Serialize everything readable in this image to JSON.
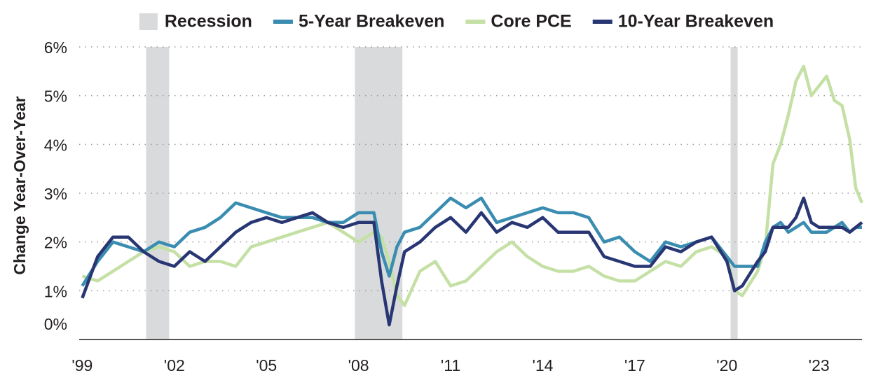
{
  "chart_data": {
    "type": "line",
    "y_axis_label": "Change Year-Over-Year",
    "recession": {
      "name": "Recession",
      "color": "#d9dadc",
      "ranges": [
        [
          2001.08,
          2001.83
        ],
        [
          2007.88,
          2009.43
        ],
        [
          2020.12,
          2020.35
        ]
      ]
    },
    "x": [
      1999.0,
      1999.5,
      2000.0,
      2000.5,
      2001.0,
      2001.5,
      2002.0,
      2002.5,
      2003.0,
      2003.5,
      2004.0,
      2004.5,
      2005.0,
      2005.5,
      2006.0,
      2006.5,
      2007.0,
      2007.5,
      2008.0,
      2008.5,
      2008.75,
      2009.0,
      2009.25,
      2009.5,
      2010.0,
      2010.5,
      2011.0,
      2011.5,
      2012.0,
      2012.5,
      2013.0,
      2013.5,
      2014.0,
      2014.5,
      2015.0,
      2015.5,
      2016.0,
      2016.5,
      2017.0,
      2017.5,
      2018.0,
      2018.5,
      2019.0,
      2019.5,
      2020.0,
      2020.25,
      2020.5,
      2021.0,
      2021.25,
      2021.5,
      2021.75,
      2022.0,
      2022.25,
      2022.5,
      2022.75,
      2023.0,
      2023.25,
      2023.5,
      2023.75,
      2024.0,
      2024.2,
      2024.4
    ],
    "series": [
      {
        "name": "Core PCE",
        "color": "#c5e0a5",
        "values": [
          1.3,
          1.2,
          1.4,
          1.6,
          1.8,
          1.9,
          1.8,
          1.5,
          1.6,
          1.6,
          1.5,
          1.9,
          2.0,
          2.1,
          2.2,
          2.3,
          2.4,
          2.2,
          2.0,
          2.2,
          2.1,
          1.6,
          0.9,
          0.7,
          1.4,
          1.6,
          1.1,
          1.2,
          1.5,
          1.8,
          2.0,
          1.7,
          1.5,
          1.4,
          1.4,
          1.5,
          1.3,
          1.2,
          1.2,
          1.4,
          1.6,
          1.5,
          1.8,
          1.9,
          1.7,
          1.0,
          0.9,
          1.4,
          1.9,
          3.6,
          4.0,
          4.6,
          5.3,
          5.6,
          5.0,
          5.2,
          5.4,
          4.9,
          4.8,
          4.1,
          3.1,
          2.8
        ]
      },
      {
        "name": "5-Year Breakeven",
        "color": "#3a8db0",
        "values": [
          1.1,
          1.6,
          2.0,
          1.9,
          1.8,
          2.0,
          1.9,
          2.2,
          2.3,
          2.5,
          2.8,
          2.7,
          2.6,
          2.5,
          2.5,
          2.5,
          2.4,
          2.4,
          2.6,
          2.6,
          1.8,
          1.3,
          1.9,
          2.2,
          2.3,
          2.6,
          2.9,
          2.7,
          2.9,
          2.4,
          2.5,
          2.6,
          2.7,
          2.6,
          2.6,
          2.5,
          2.0,
          2.1,
          1.8,
          1.6,
          2.0,
          1.9,
          2.0,
          2.1,
          1.7,
          1.5,
          1.5,
          1.5,
          2.0,
          2.3,
          2.4,
          2.2,
          2.3,
          2.4,
          2.2,
          2.2,
          2.2,
          2.3,
          2.4,
          2.2,
          2.3,
          2.3
        ]
      },
      {
        "name": "10-Year Breakeven",
        "color": "#283673",
        "values": [
          0.85,
          1.7,
          2.1,
          2.1,
          1.8,
          1.6,
          1.5,
          1.8,
          1.6,
          1.9,
          2.2,
          2.4,
          2.5,
          2.4,
          2.5,
          2.6,
          2.4,
          2.3,
          2.4,
          2.4,
          1.2,
          0.3,
          1.1,
          1.8,
          2.0,
          2.3,
          2.5,
          2.2,
          2.6,
          2.2,
          2.4,
          2.3,
          2.5,
          2.2,
          2.2,
          2.2,
          1.7,
          1.6,
          1.5,
          1.5,
          1.9,
          1.8,
          2.0,
          2.1,
          1.6,
          1.0,
          1.1,
          1.6,
          1.8,
          2.3,
          2.3,
          2.3,
          2.5,
          2.9,
          2.4,
          2.3,
          2.3,
          2.3,
          2.3,
          2.2,
          2.3,
          2.4
        ]
      }
    ],
    "legend_order": [
      1,
      0,
      2
    ],
    "xlim": [
      1998.9,
      2024.4
    ],
    "xticks": [
      {
        "value": 1999,
        "label": "'99"
      },
      {
        "value": 2002,
        "label": "'02"
      },
      {
        "value": 2005,
        "label": "'05"
      },
      {
        "value": 2008,
        "label": "'08"
      },
      {
        "value": 2011,
        "label": "'11"
      },
      {
        "value": 2014,
        "label": "'14"
      },
      {
        "value": 2017,
        "label": "'17"
      },
      {
        "value": 2020,
        "label": "'20"
      },
      {
        "value": 2023,
        "label": "'23"
      }
    ],
    "ylim": [
      0,
      6
    ],
    "yticks": [
      {
        "value": 0,
        "label": "0%"
      },
      {
        "value": 1,
        "label": "1%"
      },
      {
        "value": 2,
        "label": "2%"
      },
      {
        "value": 3,
        "label": "3%"
      },
      {
        "value": 4,
        "label": "4%"
      },
      {
        "value": 5,
        "label": "5%"
      },
      {
        "value": 6,
        "label": "6%"
      }
    ],
    "grid": true
  }
}
